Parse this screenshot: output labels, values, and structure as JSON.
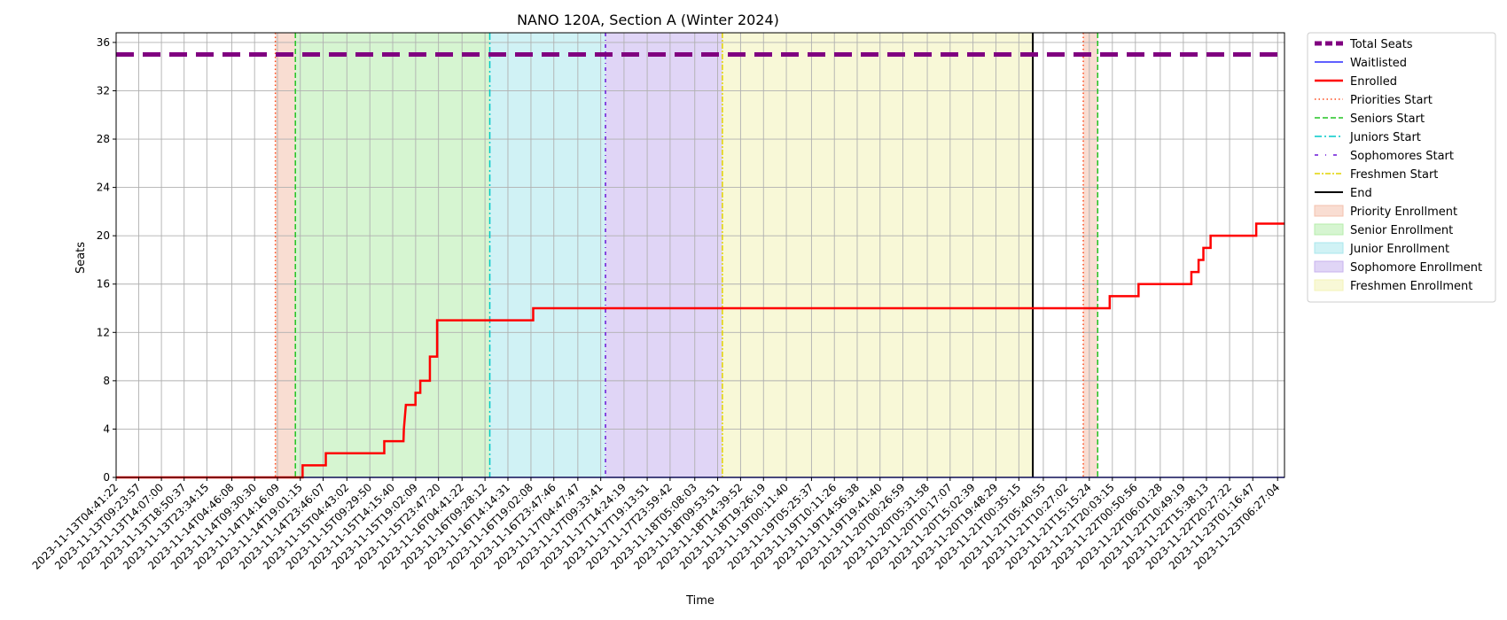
{
  "chart_data": {
    "type": "line",
    "title": "NANO 120A, Section A (Winter 2024)",
    "xlabel": "Time",
    "ylabel": "Seats",
    "ylim": [
      0,
      36.8
    ],
    "yticks": [
      0,
      4,
      8,
      12,
      16,
      20,
      24,
      28,
      32,
      36
    ],
    "grid": true,
    "legend_position": "outside-right",
    "x_tick_labels": [
      "2023-11-13T04:41:22",
      "2023-11-13T09:23:57",
      "2023-11-13T14:07:00",
      "2023-11-13T18:50:37",
      "2023-11-13T23:34:15",
      "2023-11-14T04:46:08",
      "2023-11-14T09:30:30",
      "2023-11-14T14:16:09",
      "2023-11-14T19:01:15",
      "2023-11-14T23:46:07",
      "2023-11-15T04:43:02",
      "2023-11-15T09:29:50",
      "2023-11-15T14:15:40",
      "2023-11-15T19:02:09",
      "2023-11-15T23:47:20",
      "2023-11-16T04:41:22",
      "2023-11-16T09:28:12",
      "2023-11-16T14:14:31",
      "2023-11-16T19:02:08",
      "2023-11-16T23:47:46",
      "2023-11-17T04:47:47",
      "2023-11-17T09:33:41",
      "2023-11-17T14:24:19",
      "2023-11-17T19:13:51",
      "2023-11-17T23:59:42",
      "2023-11-18T05:08:03",
      "2023-11-18T09:53:51",
      "2023-11-18T14:39:52",
      "2023-11-18T19:26:19",
      "2023-11-19T00:11:40",
      "2023-11-19T05:25:37",
      "2023-11-19T10:11:26",
      "2023-11-19T14:56:38",
      "2023-11-19T19:41:40",
      "2023-11-20T00:26:59",
      "2023-11-20T05:31:58",
      "2023-11-20T10:17:07",
      "2023-11-20T15:02:39",
      "2023-11-20T19:48:29",
      "2023-11-21T00:35:15",
      "2023-11-21T05:40:55",
      "2023-11-21T10:27:02",
      "2023-11-21T15:15:24",
      "2023-11-21T20:03:15",
      "2023-11-22T00:50:56",
      "2023-11-22T06:01:28",
      "2023-11-22T10:49:19",
      "2023-11-22T15:38:13",
      "2023-11-22T20:27:22",
      "2023-11-23T01:16:47",
      "2023-11-23T06:27:04"
    ],
    "x_range": [
      "2023-11-13T04:41:22",
      "2023-11-23T07:53:00"
    ],
    "regions": [
      {
        "name": "Priority Enrollment",
        "start": "2023-11-14T13:50:00",
        "end": "2023-11-14T18:00:00",
        "color": "#f4c1ad"
      },
      {
        "name": "Senior Enrollment",
        "start": "2023-11-14T18:00:00",
        "end": "2023-11-16T10:28:00",
        "color": "#b5edab"
      },
      {
        "name": "Junior Enrollment",
        "start": "2023-11-16T10:28:00",
        "end": "2023-11-17T10:33:00",
        "color": "#a9e7ec"
      },
      {
        "name": "Sophomore Enrollment",
        "start": "2023-11-17T10:33:00",
        "end": "2023-11-18T10:53:00",
        "color": "#c7b2ee"
      },
      {
        "name": "Freshmen Enrollment",
        "start": "2023-11-18T10:53:00",
        "end": "2023-11-21T03:30:00",
        "color": "#f3f3b7"
      },
      {
        "name": "Priority Enrollment",
        "start": "2023-11-21T14:00:00",
        "end": "2023-11-21T17:00:00",
        "color": "#f4c1ad"
      }
    ],
    "vlines": [
      {
        "name": "Priorities Start",
        "x": "2023-11-14T13:50:00",
        "color": "#ff4a1c",
        "dash": "1.5,3"
      },
      {
        "name": "Seniors Start",
        "x": "2023-11-14T18:00:00",
        "color": "#22c322",
        "dash": "6,3"
      },
      {
        "name": "Juniors Start",
        "x": "2023-11-16T10:28:00",
        "color": "#00c8c8",
        "dash": "8,3,2,3"
      },
      {
        "name": "Sophomores Start",
        "x": "2023-11-17T10:33:00",
        "color": "#6a16d8",
        "dash": "4,4,1,4"
      },
      {
        "name": "Freshmen Start",
        "x": "2023-11-18T10:53:00",
        "color": "#e2d400",
        "dash": "6,2,2,2"
      },
      {
        "name": "End",
        "x": "2023-11-21T03:30:00",
        "color": "#000000",
        "dash": ""
      },
      {
        "name": "Priorities Start",
        "x": "2023-11-21T14:00:00",
        "color": "#ff4a1c",
        "dash": "1.5,3"
      },
      {
        "name": "Seniors Start",
        "x": "2023-11-21T17:00:00",
        "color": "#22c322",
        "dash": "6,3"
      }
    ],
    "series": [
      {
        "name": "Total Seats",
        "color": "#800080",
        "x": [
          "2023-11-13T04:41:22",
          "2023-11-23T07:53:00"
        ],
        "y": [
          35,
          35
        ]
      },
      {
        "name": "Waitlisted",
        "color": "#2a2aff",
        "x": [
          "2023-11-13T04:41:22",
          "2023-11-23T07:53:00"
        ],
        "y": [
          0,
          0
        ]
      },
      {
        "name": "Enrolled",
        "color": "#ff0000",
        "x": [
          "2023-11-13T04:41:22",
          "2023-11-14T19:30:00",
          "2023-11-14T19:30:00",
          "2023-11-15T00:20:00",
          "2023-11-15T00:20:00",
          "2023-11-15T12:30:00",
          "2023-11-15T12:30:00",
          "2023-11-15T16:30:00",
          "2023-11-15T16:35:00",
          "2023-11-15T17:00:00",
          "2023-11-15T17:00:00",
          "2023-11-15T19:00:00",
          "2023-11-15T19:00:00",
          "2023-11-15T20:00:00",
          "2023-11-15T20:00:00",
          "2023-11-15T22:00:00",
          "2023-11-15T22:00:00",
          "2023-11-15T23:30:00",
          "2023-11-15T23:30:00",
          "2023-11-16T19:30:00",
          "2023-11-16T19:30:00",
          "2023-11-21T19:30:00",
          "2023-11-21T19:30:00",
          "2023-11-22T01:30:00",
          "2023-11-22T01:30:00",
          "2023-11-22T12:30:00",
          "2023-11-22T12:30:00",
          "2023-11-22T14:00:00",
          "2023-11-22T14:00:00",
          "2023-11-22T15:00:00",
          "2023-11-22T15:00:00",
          "2023-11-22T16:30:00",
          "2023-11-22T16:30:00",
          "2023-11-23T02:00:00",
          "2023-11-23T02:00:00",
          "2023-11-23T07:53:00"
        ],
        "y": [
          0,
          0,
          1,
          1,
          2,
          2,
          3,
          3,
          4,
          6,
          6,
          6,
          7,
          7,
          8,
          8,
          10,
          10,
          13,
          13,
          14,
          14,
          15,
          15,
          16,
          16,
          17,
          17,
          18,
          18,
          19,
          19,
          20,
          20,
          21,
          21
        ]
      }
    ],
    "legend": [
      {
        "label": "Total Seats",
        "kind": "line",
        "color": "#800080",
        "width": 5,
        "dash": "8,4"
      },
      {
        "label": "Waitlisted",
        "kind": "line",
        "color": "#2a2aff",
        "width": 1.5,
        "dash": ""
      },
      {
        "label": "Enrolled",
        "kind": "line",
        "color": "#ff0000",
        "width": 2.5,
        "dash": ""
      },
      {
        "label": "Priorities Start",
        "kind": "line",
        "color": "#ff4a1c",
        "width": 1.5,
        "dash": "1.5,3"
      },
      {
        "label": "Seniors Start",
        "kind": "line",
        "color": "#22c322",
        "width": 1.5,
        "dash": "6,3"
      },
      {
        "label": "Juniors Start",
        "kind": "line",
        "color": "#00c8c8",
        "width": 1.5,
        "dash": "8,3,2,3"
      },
      {
        "label": "Sophomores Start",
        "kind": "line",
        "color": "#6a16d8",
        "width": 1.5,
        "dash": "4,8,1,8"
      },
      {
        "label": "Freshmen Start",
        "kind": "line",
        "color": "#e2d400",
        "width": 1.5,
        "dash": "6,2,2,2"
      },
      {
        "label": "End",
        "kind": "line",
        "color": "#000000",
        "width": 2,
        "dash": ""
      },
      {
        "label": "Priority Enrollment",
        "kind": "patch",
        "color": "#f4c1ad"
      },
      {
        "label": "Senior Enrollment",
        "kind": "patch",
        "color": "#b5edab"
      },
      {
        "label": "Junior Enrollment",
        "kind": "patch",
        "color": "#a9e7ec"
      },
      {
        "label": "Sophomore Enrollment",
        "kind": "patch",
        "color": "#c7b2ee"
      },
      {
        "label": "Freshmen Enrollment",
        "kind": "patch",
        "color": "#f3f3b7"
      }
    ]
  }
}
